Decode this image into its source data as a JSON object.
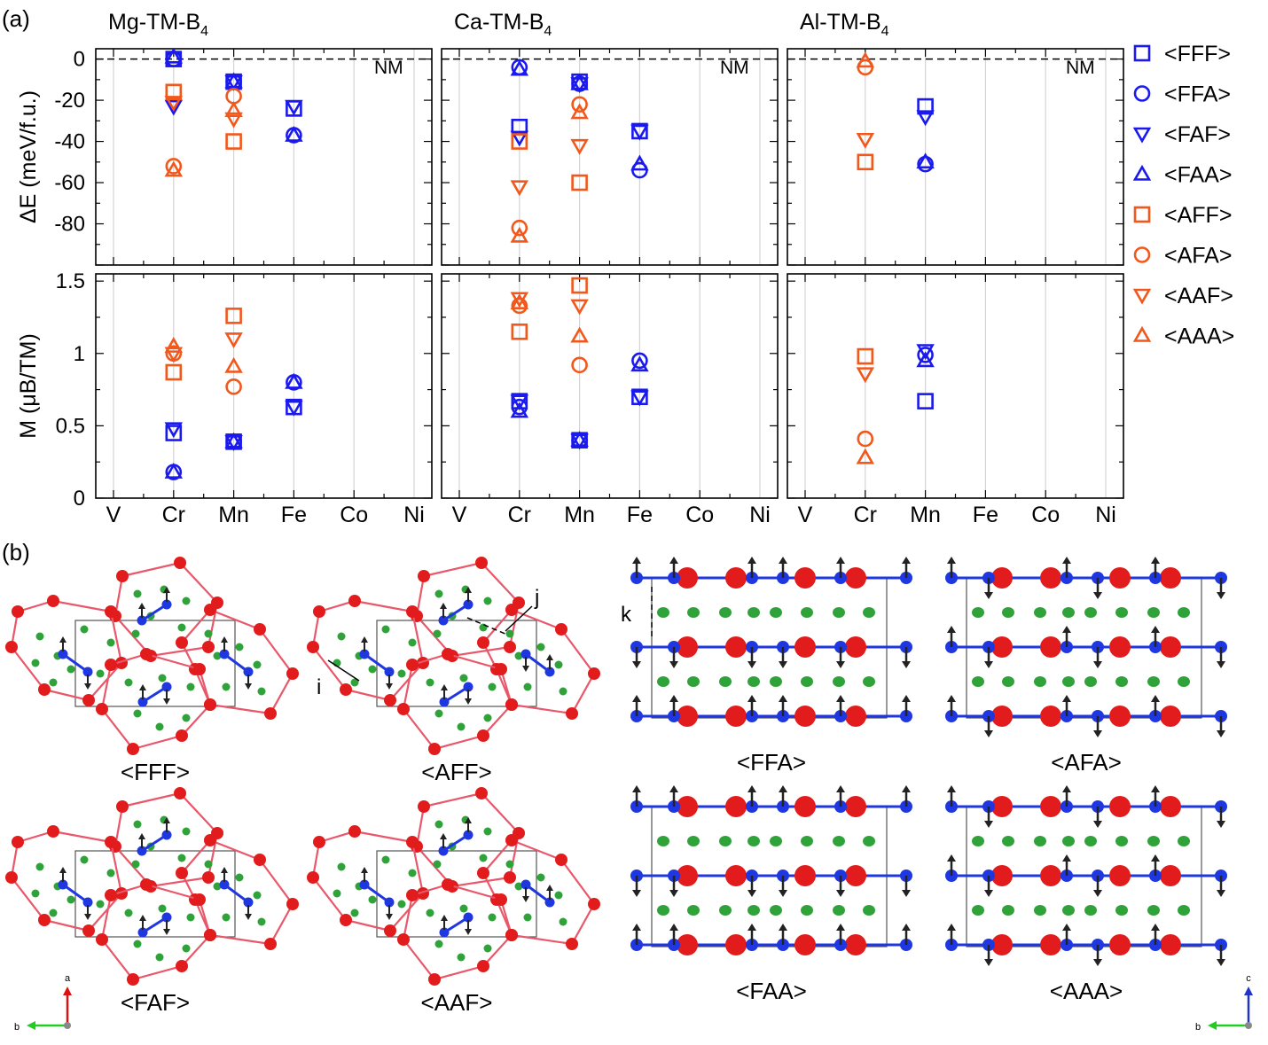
{
  "figure": {
    "panel_a_label": "(a)",
    "panel_b_label": "(b)",
    "ylabel_top": "ΔE (meV/f.u.)",
    "ylabel_bottom": "M (μB/TM)",
    "nm_label": "NM",
    "elements": [
      "V",
      "Cr",
      "Mn",
      "Fe",
      "Co",
      "Ni"
    ],
    "energy_ticks": [
      "0",
      "-20",
      "-40",
      "-60",
      "-80"
    ],
    "moment_ticks": [
      "0",
      "0.5",
      "1",
      "1.5"
    ],
    "colors": {
      "F": "#1a1aef",
      "A": "#f2581c"
    }
  },
  "chart_data": [
    {
      "type": "scatter",
      "title": "Mg-TM-B4",
      "title_main": "Mg-TM-B",
      "title_sub": "4",
      "categories": [
        "V",
        "Cr",
        "Mn",
        "Fe",
        "Co",
        "Ni"
      ],
      "energy_ylim": [
        -100,
        5
      ],
      "moment_ylim": [
        0,
        1.55
      ],
      "series": [
        {
          "name": "<FFF>",
          "marker": "square",
          "color": "#1a1aef",
          "energy": {
            "Cr": 0,
            "Mn": -11,
            "Fe": -24
          },
          "moment": {
            "Cr": 0.45,
            "Mn": 0.39,
            "Fe": 0.63
          }
        },
        {
          "name": "<FFA>",
          "marker": "circle",
          "color": "#1a1aef",
          "energy": {
            "Cr": 0,
            "Mn": -11,
            "Fe": -37
          },
          "moment": {
            "Cr": 0.18,
            "Mn": 0.39,
            "Fe": 0.8
          }
        },
        {
          "name": "<FAF>",
          "marker": "triangle-down",
          "color": "#1a1aef",
          "energy": {
            "Cr": -23,
            "Mn": -11,
            "Fe": -23
          },
          "moment": {
            "Cr": 0.48,
            "Mn": 0.39,
            "Fe": 0.63
          }
        },
        {
          "name": "<FAA>",
          "marker": "triangle-up",
          "color": "#1a1aef",
          "energy": {
            "Cr": 1,
            "Mn": -11,
            "Fe": -37
          },
          "moment": {
            "Cr": 0.18,
            "Mn": 0.39,
            "Fe": 0.8
          }
        },
        {
          "name": "<AFF>",
          "marker": "square",
          "color": "#f2581c",
          "energy": {
            "Cr": -16,
            "Mn": -40
          },
          "moment": {
            "Cr": 0.87,
            "Mn": 1.26
          }
        },
        {
          "name": "<AFA>",
          "marker": "circle",
          "color": "#f2581c",
          "energy": {
            "Cr": -52,
            "Mn": -18
          },
          "moment": {
            "Cr": 1.0,
            "Mn": 0.77
          }
        },
        {
          "name": "<AAF>",
          "marker": "triangle-down",
          "color": "#f2581c",
          "energy": {
            "Cr": -21,
            "Mn": -29
          },
          "moment": {
            "Cr": 1.0,
            "Mn": 1.1
          }
        },
        {
          "name": "<AAA>",
          "marker": "triangle-up",
          "color": "#f2581c",
          "energy": {
            "Cr": -54,
            "Mn": -25
          },
          "moment": {
            "Cr": 1.05,
            "Mn": 0.91
          }
        }
      ]
    },
    {
      "type": "scatter",
      "title": "Ca-TM-B4",
      "title_main": "Ca-TM-B",
      "title_sub": "4",
      "categories": [
        "V",
        "Cr",
        "Mn",
        "Fe",
        "Co",
        "Ni"
      ],
      "energy_ylim": [
        -100,
        5
      ],
      "moment_ylim": [
        0,
        1.55
      ],
      "series": [
        {
          "name": "<FFF>",
          "marker": "square",
          "color": "#1a1aef",
          "energy": {
            "Cr": -33,
            "Mn": -11,
            "Fe": -35
          },
          "moment": {
            "Cr": 0.67,
            "Mn": 0.4,
            "Fe": 0.7
          }
        },
        {
          "name": "<FFA>",
          "marker": "circle",
          "color": "#1a1aef",
          "energy": {
            "Cr": -4,
            "Mn": -12,
            "Fe": -54
          },
          "moment": {
            "Cr": 0.63,
            "Mn": 0.4,
            "Fe": 0.95
          }
        },
        {
          "name": "<FAF>",
          "marker": "triangle-down",
          "color": "#1a1aef",
          "energy": {
            "Cr": -38,
            "Mn": -12,
            "Fe": -35
          },
          "moment": {
            "Cr": 0.67,
            "Mn": 0.4,
            "Fe": 0.7
          }
        },
        {
          "name": "<FAA>",
          "marker": "triangle-up",
          "color": "#1a1aef",
          "energy": {
            "Cr": -5,
            "Mn": -12,
            "Fe": -51
          },
          "moment": {
            "Cr": 0.6,
            "Mn": 0.4,
            "Fe": 0.92
          }
        },
        {
          "name": "<AFF>",
          "marker": "square",
          "color": "#f2581c",
          "energy": {
            "Cr": -40,
            "Mn": -60
          },
          "moment": {
            "Cr": 1.15,
            "Mn": 1.47
          }
        },
        {
          "name": "<AFA>",
          "marker": "circle",
          "color": "#f2581c",
          "energy": {
            "Cr": -82,
            "Mn": -22
          },
          "moment": {
            "Cr": 1.33,
            "Mn": 0.92
          }
        },
        {
          "name": "<AAF>",
          "marker": "triangle-down",
          "color": "#f2581c",
          "energy": {
            "Cr": -62,
            "Mn": -42
          },
          "moment": {
            "Cr": 1.38,
            "Mn": 1.33
          }
        },
        {
          "name": "<AAA>",
          "marker": "triangle-up",
          "color": "#f2581c",
          "energy": {
            "Cr": -86,
            "Mn": -26
          },
          "moment": {
            "Cr": 1.35,
            "Mn": 1.12
          }
        }
      ]
    },
    {
      "type": "scatter",
      "title": "Al-TM-B4",
      "title_main": "Al-TM-B",
      "title_sub": "4",
      "categories": [
        "V",
        "Cr",
        "Mn",
        "Fe",
        "Co",
        "Ni"
      ],
      "energy_ylim": [
        -100,
        5
      ],
      "moment_ylim": [
        0,
        1.55
      ],
      "series": [
        {
          "name": "<FFF>",
          "marker": "square",
          "color": "#1a1aef",
          "energy": {
            "Mn": -23
          },
          "moment": {
            "Mn": 0.67
          }
        },
        {
          "name": "<FFA>",
          "marker": "circle",
          "color": "#1a1aef",
          "energy": {
            "Mn": -51
          },
          "moment": {
            "Mn": 0.99
          }
        },
        {
          "name": "<FAF>",
          "marker": "triangle-down",
          "color": "#1a1aef",
          "energy": {
            "Mn": -28
          },
          "moment": {
            "Mn": 1.02
          }
        },
        {
          "name": "<FAA>",
          "marker": "triangle-up",
          "color": "#1a1aef",
          "energy": {
            "Mn": -50
          },
          "moment": {
            "Mn": 0.95
          }
        },
        {
          "name": "<AFF>",
          "marker": "square",
          "color": "#f2581c",
          "energy": {
            "Cr": -50
          },
          "moment": {
            "Cr": 0.98
          }
        },
        {
          "name": "<AFA>",
          "marker": "circle",
          "color": "#f2581c",
          "energy": {
            "Cr": -4
          },
          "moment": {
            "Cr": 0.41
          }
        },
        {
          "name": "<AAF>",
          "marker": "triangle-down",
          "color": "#f2581c",
          "energy": {
            "Cr": -39
          },
          "moment": {
            "Cr": 0.86
          }
        },
        {
          "name": "<AAA>",
          "marker": "triangle-up",
          "color": "#f2581c",
          "energy": {
            "Cr": -1
          },
          "moment": {
            "Cr": 0.28
          }
        }
      ]
    }
  ],
  "structures": {
    "top_view_labels": [
      "<FFF>",
      "<AFF>",
      "<FAF>",
      "<AAF>"
    ],
    "side_view_labels": [
      "<FFA>",
      "<AFA>",
      "<FAA>",
      "<AAA>"
    ],
    "annotations": {
      "i": "i",
      "j": "j",
      "k": "k"
    },
    "axes_left": {
      "a": "a",
      "b": "b"
    },
    "axes_right": {
      "c": "c",
      "b": "b"
    }
  }
}
